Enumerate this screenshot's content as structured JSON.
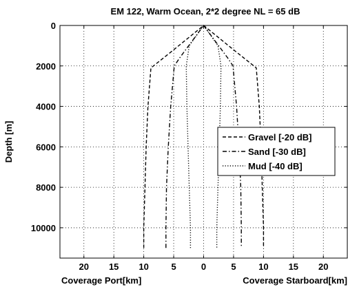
{
  "chart_data": {
    "type": "line",
    "title": "EM 122, Warm Ocean, 2*2 degree   NL = 65 dB",
    "xlabel_left": "Coverage Port[km]",
    "xlabel_right": "Coverage Starboard[km]",
    "ylabel": "Depth [m]",
    "xlim": [
      -24,
      24
    ],
    "ylim": [
      11500,
      0
    ],
    "x_ticks": [
      -20,
      -15,
      -10,
      -5,
      0,
      5,
      10,
      15,
      20
    ],
    "x_tick_labels": [
      "20",
      "15",
      "10",
      "5",
      "0",
      "5",
      "10",
      "15",
      "20"
    ],
    "y_ticks": [
      0,
      2000,
      4000,
      6000,
      8000,
      10000
    ],
    "y_tick_labels": [
      "0",
      "2000",
      "4000",
      "6000",
      "8000",
      "10000"
    ],
    "grid": true,
    "legend_position": "right",
    "series": [
      {
        "name": "Gravel [-20 dB]",
        "dash": "dashed",
        "points": [
          [
            -10,
            11000
          ],
          [
            -10,
            10000
          ],
          [
            -9.8,
            8000
          ],
          [
            -9.6,
            6000
          ],
          [
            -9.3,
            4000
          ],
          [
            -8.8,
            2100
          ],
          [
            -5,
            1200
          ],
          [
            0,
            0
          ],
          [
            5,
            1200
          ],
          [
            8.8,
            2100
          ],
          [
            9.3,
            4000
          ],
          [
            9.6,
            6000
          ],
          [
            9.8,
            8000
          ],
          [
            10,
            10000
          ],
          [
            10,
            11000
          ]
        ]
      },
      {
        "name": "Sand [-30 dB]",
        "dash": "dashdot",
        "points": [
          [
            -6.3,
            11000
          ],
          [
            -6.3,
            10000
          ],
          [
            -6.2,
            8000
          ],
          [
            -5.9,
            6000
          ],
          [
            -5.5,
            4000
          ],
          [
            -4.9,
            2000
          ],
          [
            -4,
            1600
          ],
          [
            0,
            0
          ],
          [
            4,
            1600
          ],
          [
            4.9,
            2000
          ],
          [
            5.5,
            4000
          ],
          [
            5.9,
            6000
          ],
          [
            6.2,
            8000
          ],
          [
            6.3,
            10000
          ],
          [
            6.3,
            11000
          ]
        ]
      },
      {
        "name": "Mud [-40 dB]",
        "dash": "dotted",
        "points": [
          [
            -2.2,
            11000
          ],
          [
            -2.2,
            10000
          ],
          [
            -2.4,
            8000
          ],
          [
            -2.6,
            6000
          ],
          [
            -2.8,
            4000
          ],
          [
            -2.9,
            2000
          ],
          [
            -2.4,
            1000
          ],
          [
            0,
            0
          ],
          [
            2.4,
            1000
          ],
          [
            2.9,
            2000
          ],
          [
            2.8,
            4000
          ],
          [
            2.6,
            6000
          ],
          [
            2.4,
            8000
          ],
          [
            2.2,
            10000
          ],
          [
            2.2,
            11000
          ]
        ]
      }
    ]
  }
}
